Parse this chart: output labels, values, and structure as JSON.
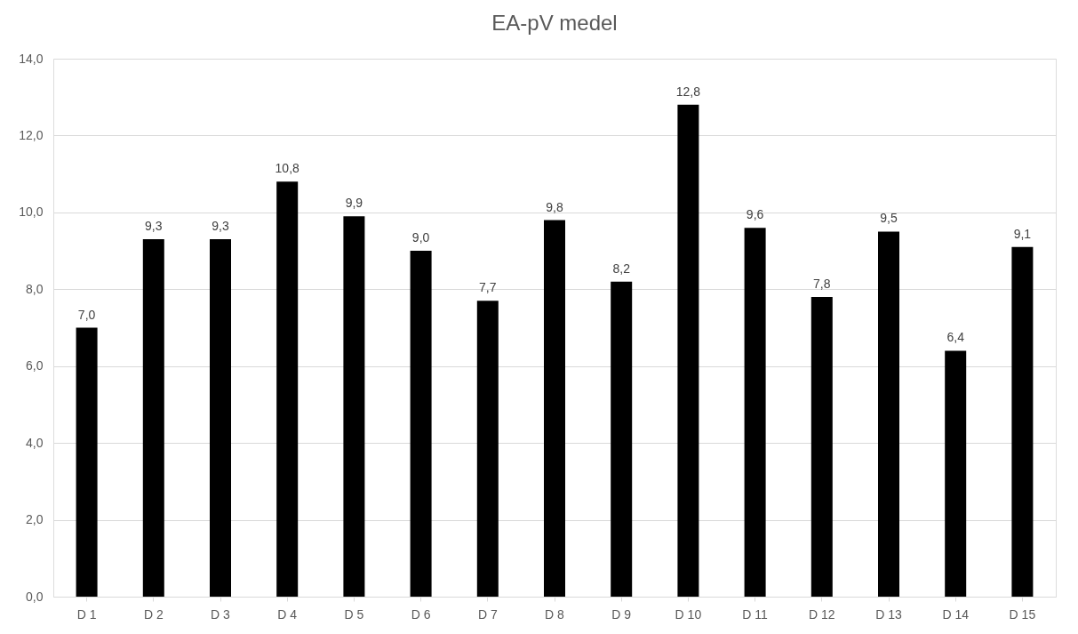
{
  "chart_data": {
    "type": "bar",
    "title": "EA-pV medel",
    "categories": [
      "D 1",
      "D 2",
      "D 3",
      "D 4",
      "D 5",
      "D 6",
      "D 7",
      "D 8",
      "D 9",
      "D 10",
      "D 11",
      "D 12",
      "D 13",
      "D 14",
      "D 15"
    ],
    "values": [
      7.0,
      9.3,
      9.3,
      10.8,
      9.9,
      9.0,
      7.7,
      9.8,
      8.2,
      12.8,
      9.6,
      7.8,
      9.5,
      6.4,
      9.1
    ],
    "value_labels": [
      "7,0",
      "9,3",
      "9,3",
      "10,8",
      "9,9",
      "9,0",
      "7,7",
      "9,8",
      "8,2",
      "12,8",
      "9,6",
      "7,8",
      "9,5",
      "6,4",
      "9,1"
    ],
    "color": "#000000",
    "ylim": [
      0,
      14
    ],
    "yticks": [
      {
        "value": 0,
        "label": "0,0"
      },
      {
        "value": 2,
        "label": "2,0"
      },
      {
        "value": 4,
        "label": "4,0"
      },
      {
        "value": 6,
        "label": "6,0"
      },
      {
        "value": 8,
        "label": "8,0"
      },
      {
        "value": 10,
        "label": "10,0"
      },
      {
        "value": 12,
        "label": "12,0"
      },
      {
        "value": 14,
        "label": "14,0"
      }
    ],
    "grid": "y"
  }
}
